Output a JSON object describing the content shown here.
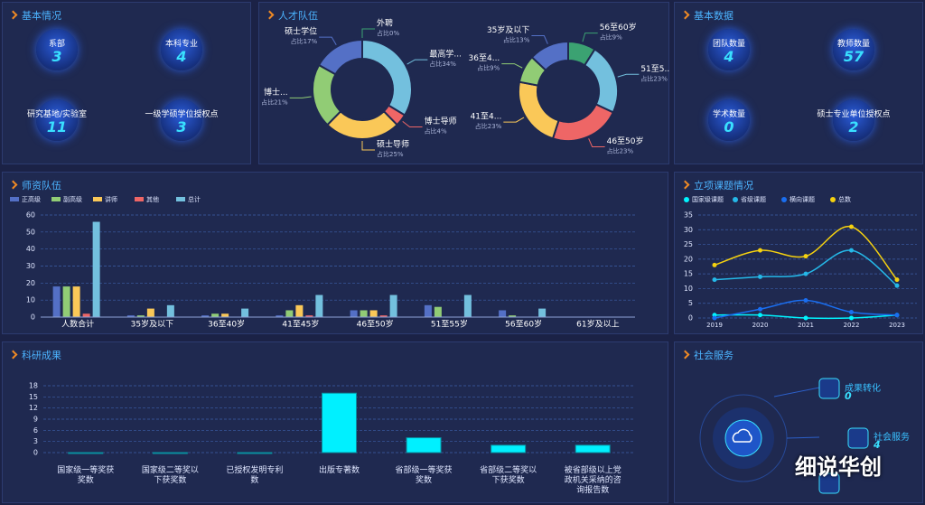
{
  "basic_info": {
    "title": "基本情况",
    "items": [
      {
        "label": "系部",
        "value": 3
      },
      {
        "label": "本科专业",
        "value": 4
      },
      {
        "label": "研究基地/实验室",
        "value": 11
      },
      {
        "label": "一级学硕学位授权点",
        "value": 3
      }
    ]
  },
  "talent_title": "人才队伍",
  "basic_data": {
    "title": "基本数据",
    "items": [
      {
        "label": "团队数量",
        "value": 4
      },
      {
        "label": "教师数量",
        "value": 57
      },
      {
        "label": "学术数量",
        "value": 0
      },
      {
        "label": "硕士专业单位授权点",
        "value": 2
      }
    ]
  },
  "social_service": {
    "title": "社会服务",
    "items": [
      {
        "label": "成果转化",
        "value": 0
      },
      {
        "label": "社会服务",
        "value": 4
      }
    ]
  },
  "watermark": "细说华创",
  "chart_data": [
    {
      "type": "pie",
      "donut": true,
      "categories": [
        "外聘",
        "最高学...",
        "博士导师",
        "硕士导师",
        "博士...",
        "硕士学位"
      ],
      "values": [
        0,
        34,
        4,
        25,
        21,
        17
      ],
      "value_labels": [
        "占比0%",
        "占比34%",
        "占比4%",
        "占比25%",
        "占比21%",
        "占比17%"
      ],
      "colors": [
        "#3ba272",
        "#73c0de",
        "#ee6666",
        "#fac858",
        "#91cc75",
        "#5470c6"
      ]
    },
    {
      "type": "pie",
      "donut": true,
      "categories": [
        "56至60岁",
        "51至5...",
        "46至50岁",
        "41至4...",
        "36至4...",
        "35岁及以下"
      ],
      "values": [
        9,
        23,
        23,
        23,
        9,
        13
      ],
      "value_labels": [
        "占比9%",
        "占比23%",
        "占比23%",
        "占比23%",
        "占比9%",
        "占比13%"
      ],
      "colors": [
        "#3ba272",
        "#73c0de",
        "#ee6666",
        "#fac858",
        "#91cc75",
        "#5470c6"
      ]
    },
    {
      "type": "bar",
      "title": "师资队伍",
      "categories": [
        "人数合计",
        "35岁及以下",
        "36至40岁",
        "41至45岁",
        "46至50岁",
        "51至55岁",
        "56至60岁",
        "61岁及以上"
      ],
      "series": [
        {
          "name": "正高级",
          "color": "#5470c6",
          "values": [
            18,
            1,
            1,
            1,
            4,
            7,
            4,
            0
          ]
        },
        {
          "name": "副高级",
          "color": "#91cc75",
          "values": [
            18,
            1,
            2,
            4,
            4,
            6,
            1,
            0
          ]
        },
        {
          "name": "讲师",
          "color": "#fac858",
          "values": [
            18,
            5,
            2,
            7,
            4,
            0,
            0,
            0
          ]
        },
        {
          "name": "其他",
          "color": "#ee6666",
          "values": [
            2,
            0,
            0,
            1,
            1,
            0,
            0,
            0
          ]
        },
        {
          "name": "总计",
          "color": "#73c0de",
          "values": [
            56,
            7,
            5,
            13,
            13,
            13,
            5,
            0
          ]
        }
      ],
      "ylim": [
        0,
        60
      ],
      "yticks": [
        0,
        10,
        20,
        30,
        40,
        50,
        60
      ],
      "grid": true
    },
    {
      "type": "line",
      "title": "立项课题情况",
      "categories": [
        "2019",
        "2020",
        "2021",
        "2022",
        "2023"
      ],
      "series": [
        {
          "name": "国家级课题",
          "color": "#00f5ff",
          "values": [
            1,
            1,
            0,
            0,
            1
          ]
        },
        {
          "name": "省级课题",
          "color": "#25b8e8",
          "values": [
            13,
            14,
            15,
            23,
            11
          ]
        },
        {
          "name": "横向课题",
          "color": "#1a6ef0",
          "values": [
            0,
            3,
            6,
            2,
            1
          ]
        },
        {
          "name": "总数",
          "color": "#f5d10f",
          "values": [
            18,
            23,
            21,
            31,
            13
          ]
        }
      ],
      "ylim": [
        0,
        35
      ],
      "yticks": [
        0,
        5,
        10,
        15,
        20,
        25,
        30,
        35
      ],
      "grid": true
    },
    {
      "type": "bar",
      "title": "科研成果",
      "categories": [
        "国家级一等奖获奖数",
        "国家级二等奖以下获奖数",
        "已授权发明专利数",
        "出版专著数",
        "省部级一等奖获奖数",
        "省部级二等奖以下获奖数",
        "被省部级以上党政机关采纳的咨询报告数"
      ],
      "values": [
        0,
        0,
        0,
        16,
        4,
        2,
        2
      ],
      "color": "#00f0ff",
      "ylim": [
        0,
        18
      ],
      "yticks": [
        0,
        3,
        6,
        9,
        12,
        15,
        18
      ],
      "grid": true
    }
  ]
}
